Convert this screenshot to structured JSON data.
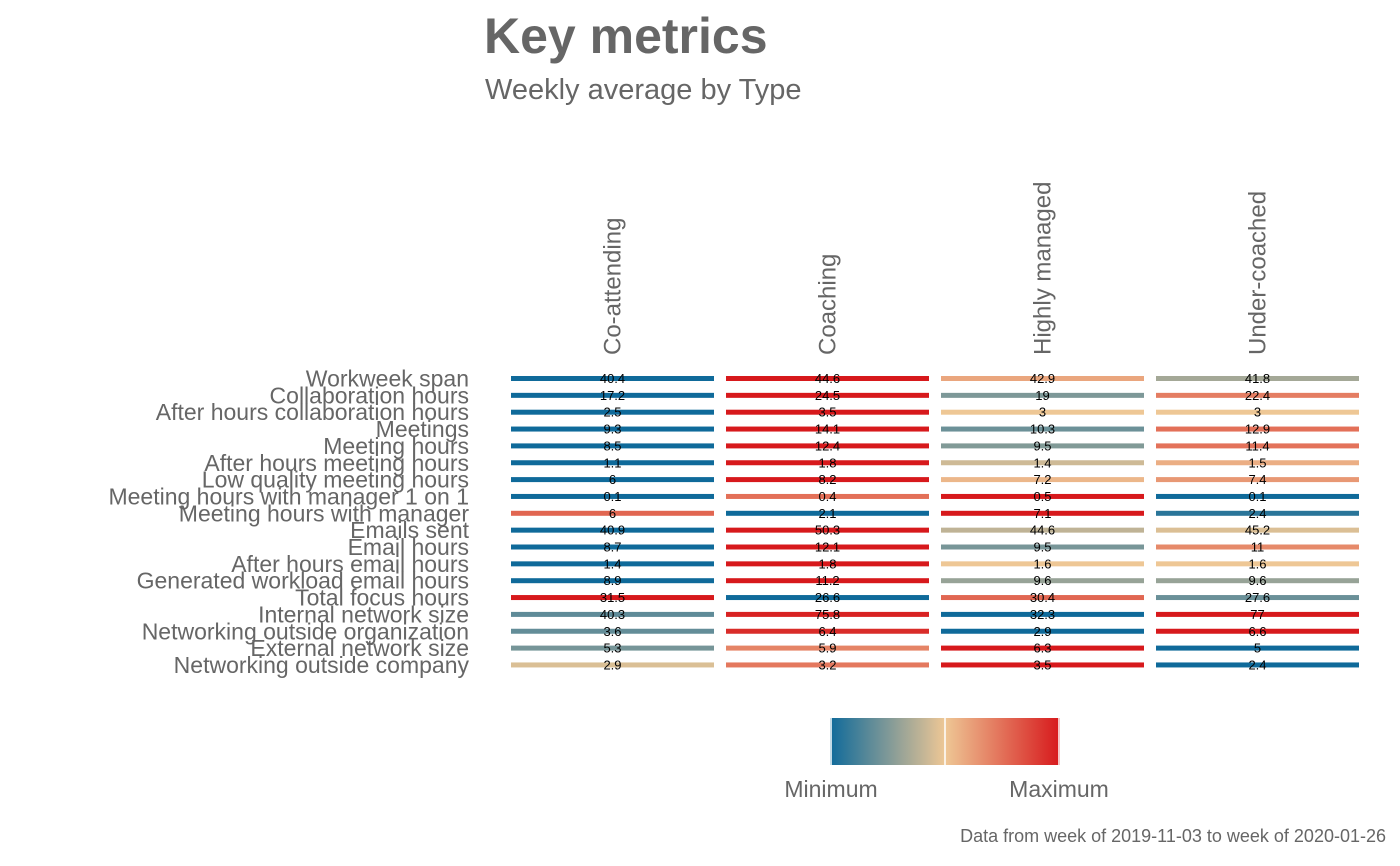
{
  "chart_data": {
    "type": "heatmap",
    "title": "Key metrics",
    "subtitle": "Weekly average by Type",
    "caption": "Data from week of 2019-11-03 to week of 2020-01-26",
    "columns": [
      "Co-attending",
      "Coaching",
      "Highly managed",
      "Under-coached"
    ],
    "rows": [
      "Workweek span",
      "Collaboration hours",
      "After hours collaboration hours",
      "Meetings",
      "Meeting hours",
      "After hours meeting hours",
      "Low quality meeting hours",
      "Meeting hours with manager 1 on 1",
      "Meeting hours with manager",
      "Emails sent",
      "Email hours",
      "After hours email hours",
      "Generated workload email hours",
      "Total focus hours",
      "Internal network size",
      "Networking outside organization",
      "External network size",
      "Networking outside company"
    ],
    "values": [
      [
        40.4,
        44.6,
        42.9,
        41.8
      ],
      [
        17.2,
        24.5,
        19,
        22.4
      ],
      [
        2.5,
        3.5,
        3,
        3
      ],
      [
        9.3,
        14.1,
        10.3,
        12.9
      ],
      [
        8.5,
        12.4,
        9.5,
        11.4
      ],
      [
        1.1,
        1.8,
        1.4,
        1.5
      ],
      [
        6,
        8.2,
        7.2,
        7.4
      ],
      [
        0.1,
        0.4,
        0.5,
        0.1
      ],
      [
        6,
        2.1,
        7.1,
        2.4
      ],
      [
        40.9,
        50.3,
        44.6,
        45.2
      ],
      [
        8.7,
        12.1,
        9.5,
        11
      ],
      [
        1.4,
        1.8,
        1.6,
        1.6
      ],
      [
        8.9,
        11.2,
        9.6,
        9.6
      ],
      [
        31.5,
        26.6,
        30.4,
        27.6
      ],
      [
        40.3,
        75.8,
        32.3,
        77
      ],
      [
        3.6,
        6.4,
        2.9,
        6.6
      ],
      [
        5.3,
        5.9,
        6.3,
        5
      ],
      [
        2.9,
        3.2,
        3.5,
        2.4
      ]
    ],
    "legend": {
      "min_label": "Minimum",
      "max_label": "Maximum",
      "colors": [
        "#0f6a9a",
        "#eec795",
        "#d7191c"
      ]
    },
    "scale": "row-wise min to max"
  }
}
